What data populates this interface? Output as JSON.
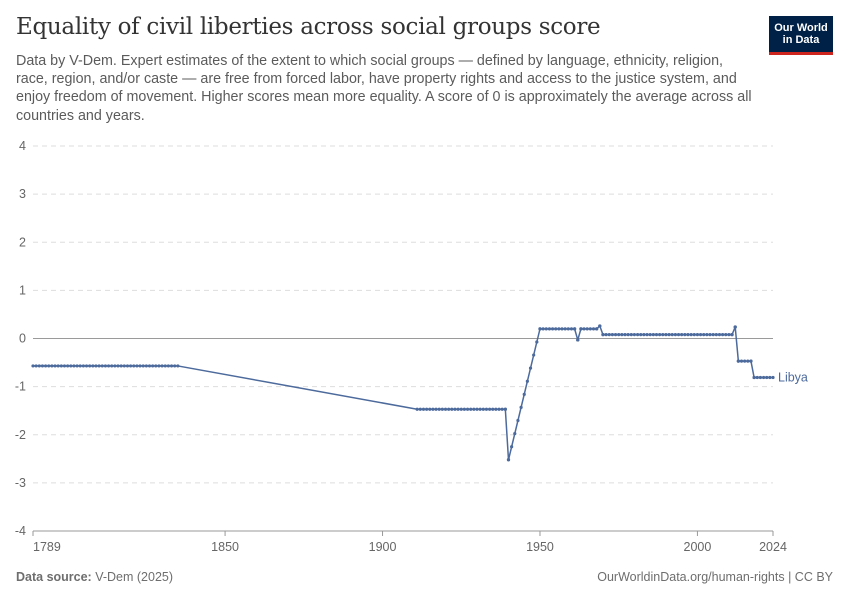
{
  "header": {
    "title": "Equality of civil liberties across social groups score",
    "subtitle": "Data by V-Dem. Expert estimates of the extent to which social groups — defined by language, ethnicity, religion, race, region, and/or caste — are free from forced labor, have property rights and access to the justice system, and enjoy freedom of movement. Higher scores mean more equality. A score of 0 is approximately the average across all countries and years.",
    "logo_line1": "Our World",
    "logo_line2": "in Data"
  },
  "footer": {
    "source_label": "Data source:",
    "source_value": "V-Dem (2025)",
    "right_text": "OurWorldinData.org/human-rights | CC BY"
  },
  "colors": {
    "series": "#4c6a9c",
    "grid": "#dddddd",
    "zero_line": "#9a9a9a",
    "logo_bg": "#002147",
    "logo_accent": "#ce261e"
  },
  "chart_data": {
    "type": "line",
    "ylim": [
      -4,
      4
    ],
    "xlim": [
      1789,
      2024
    ],
    "y_ticks": [
      "4",
      "3",
      "2",
      "1",
      "0",
      "-1",
      "-2",
      "-3",
      "-4"
    ],
    "x_ticks": [
      "1789",
      "1850",
      "1900",
      "1950",
      "2000",
      "2024"
    ],
    "grid": "horizontal dashed",
    "series": [
      {
        "name": "Libya",
        "segments": [
          [
            [
              1789,
              -0.57
            ],
            [
              1835,
              -0.57
            ]
          ],
          [
            [
              1835,
              -0.57
            ],
            [
              1911,
              -1.47
            ]
          ],
          [
            [
              1911,
              -1.47
            ],
            [
              1939,
              -1.47
            ],
            [
              1940,
              -2.52
            ],
            [
              1950,
              0.2
            ],
            [
              1961,
              0.2
            ],
            [
              1962,
              -0.03
            ],
            [
              1963,
              0.2
            ],
            [
              1968,
              0.2
            ],
            [
              1969,
              0.26
            ],
            [
              1970,
              0.08
            ],
            [
              2011,
              0.08
            ],
            [
              2012,
              0.24
            ],
            [
              2013,
              -0.47
            ],
            [
              2017,
              -0.47
            ],
            [
              2018,
              -0.81
            ],
            [
              2024,
              -0.81
            ]
          ]
        ]
      }
    ]
  }
}
